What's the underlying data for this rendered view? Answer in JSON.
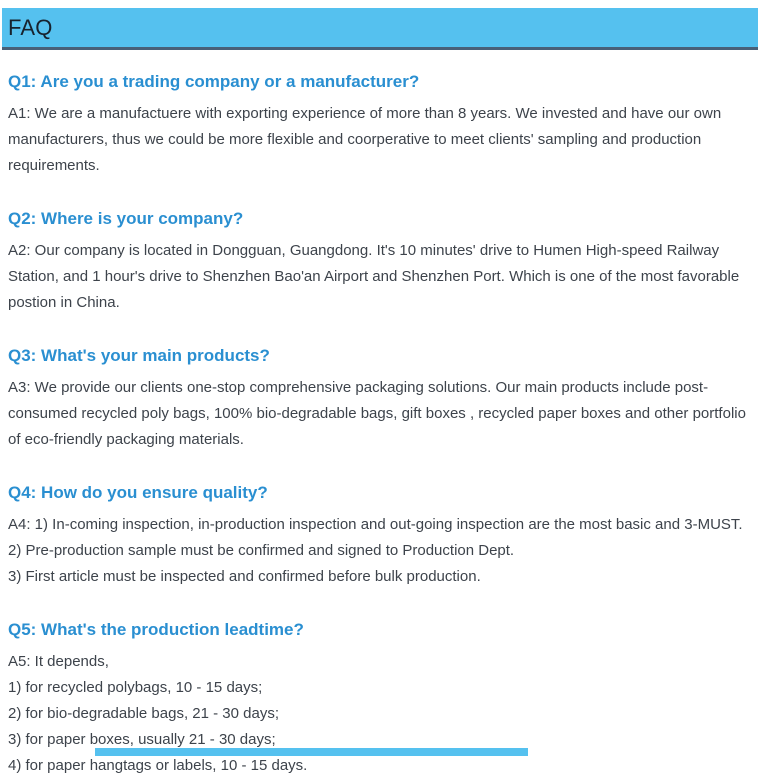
{
  "header": {
    "title": "FAQ"
  },
  "colors": {
    "header_bg": "#55c1ef",
    "header_border": "#486078",
    "question_blue": "#2a8fd1",
    "body_text": "#3d434b"
  },
  "faq": {
    "sections": [
      {
        "question": "Q1: Are you a trading company or a manufacturer?",
        "answer_lines": [
          "A1: We are a manufactuere with exporting experience of more than 8 years. We invested and have our own manufacturers, thus we could be more flexible and coorperative to meet clients' sampling and production requirements."
        ]
      },
      {
        "question": "Q2: Where is your company?",
        "answer_lines": [
          "A2: Our company is located in Dongguan, Guangdong. It's 10 minutes' drive to Humen High-speed Railway Station, and 1 hour's drive to Shenzhen Bao'an Airport and Shenzhen Port. Which is one of the most favorable postion in China."
        ]
      },
      {
        "question": "Q3: What's your main products?",
        "answer_lines": [
          "A3: We provide our clients one-stop comprehensive packaging solutions. Our main products include post-consumed recycled poly bags, 100% bio-degradable bags, gift boxes , recycled paper boxes and other portfolio of eco-friendly packaging materials."
        ]
      },
      {
        "question": "Q4: How do you ensure quality?",
        "answer_lines": [
          "A4: 1) In-coming inspection, in-production inspection and out-going inspection are the most basic and 3-MUST.",
          "2) Pre-production sample must be confirmed and signed to Production Dept.",
          "3) First article must be inspected and confirmed before bulk production."
        ]
      },
      {
        "question": "Q5: What's the production leadtime?",
        "answer_lines": [
          "A5: It depends,",
          "1) for recycled polybags, 10 - 15 days;",
          "2) for bio-degradable bags, 21 - 30 days;",
          "3) for paper boxes, usually 21 - 30 days;",
          "4) for paper hangtags or labels, 10 - 15 days."
        ]
      }
    ]
  }
}
